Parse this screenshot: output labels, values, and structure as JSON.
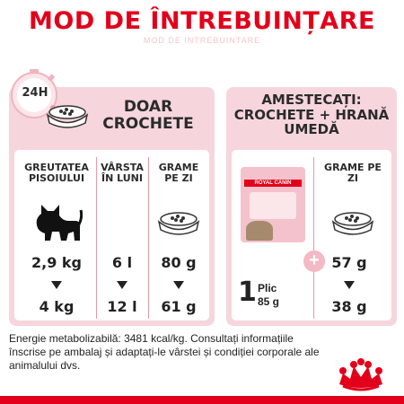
{
  "title": "MOD DE ÎNTREBUINȚARE",
  "title_shadow": "MOD DE INTREBUINTARE",
  "clock_label": "24H",
  "left": {
    "header": "DOAR CROCHETE",
    "col1": "GREUTATEA PISOIULUI",
    "col2": "VÂRSTA ÎN LUNI",
    "col3": "GRAME PE ZI",
    "row1": [
      "2,9 kg",
      "6 l",
      "80 g"
    ],
    "row2": [
      "4 kg",
      "12 l",
      "61 g"
    ]
  },
  "right": {
    "header": "AMESTECAȚI: CROCHETE + HRANĂ UMEDĂ",
    "col": "GRAME PE ZI",
    "pouch_brand": "ROYAL CANIN",
    "pouch_qty": "1",
    "pouch_unit": "Plic",
    "pouch_grams": "85 g",
    "plus": "+",
    "row1": "57 g",
    "row2": "38 g"
  },
  "note": "Energie metabolizabilă: 3481 kcal/kg. Consultați informațiile înscrise pe ambalaj și adaptați-le vârstei și condiției corporale ale animalului dvs.",
  "colors": {
    "brand_red": "#e2001a",
    "panel_pink": "#f6d6dc",
    "divider": "#e59aa7"
  }
}
